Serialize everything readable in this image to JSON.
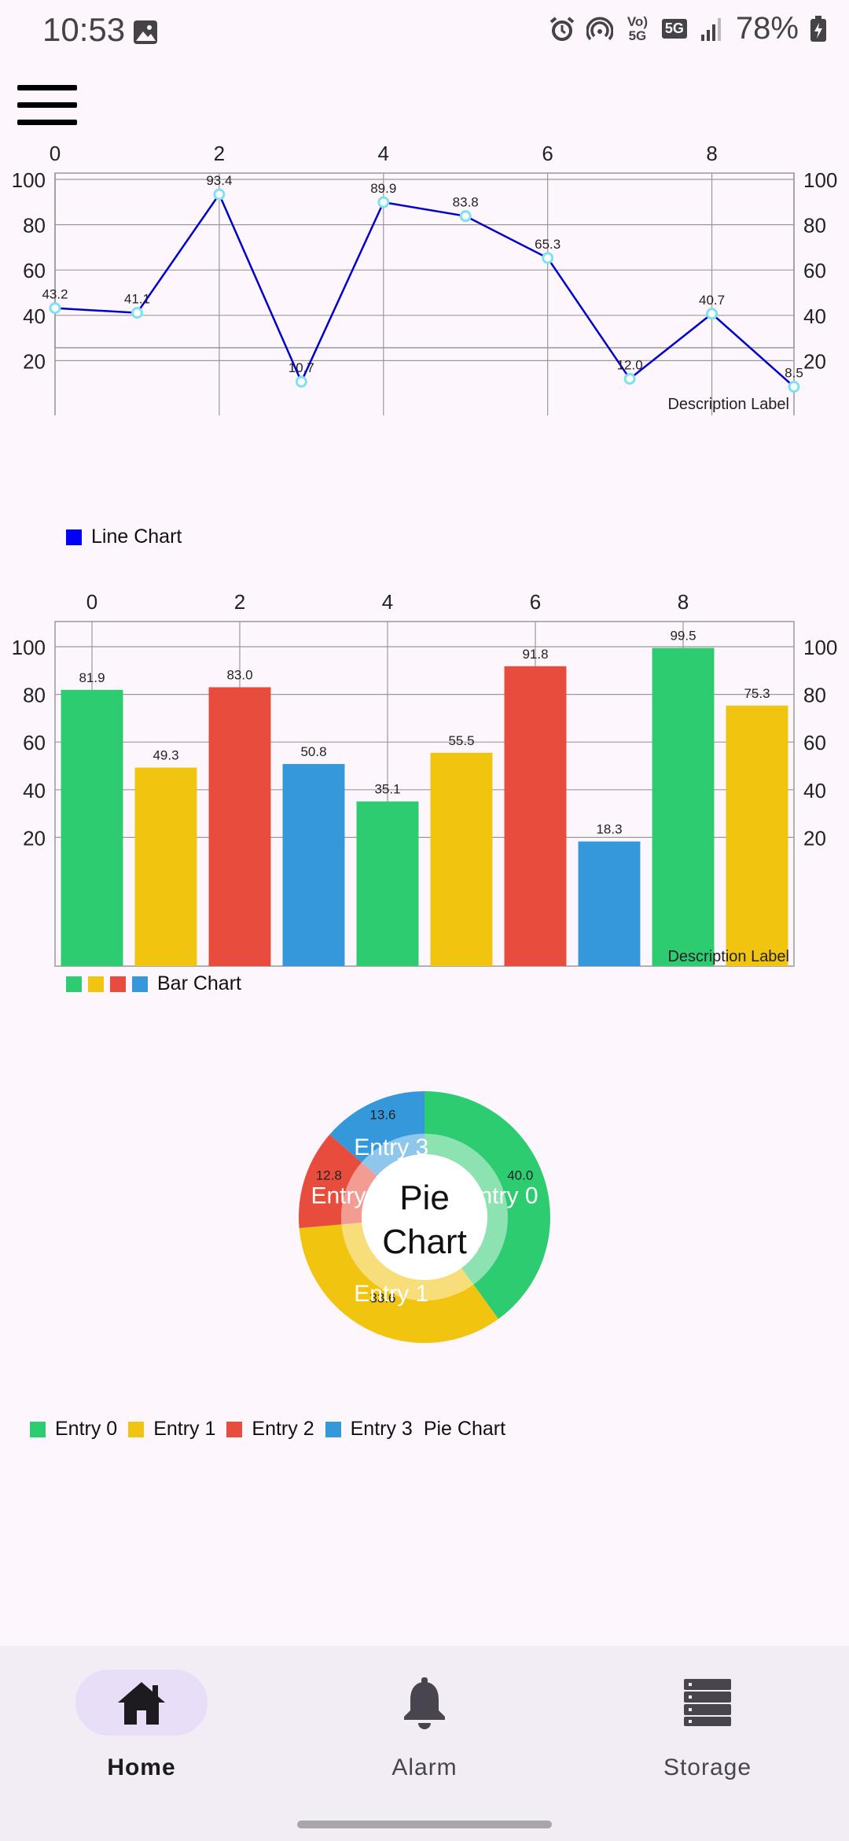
{
  "status_bar": {
    "time": "10:53",
    "battery": "78%",
    "network": "5G",
    "volte": "Vo) 5G"
  },
  "line_chart": {
    "chart_data": {
      "type": "line",
      "x": [
        0,
        1,
        2,
        3,
        4,
        5,
        6,
        7,
        8,
        9
      ],
      "values": [
        43.2,
        41.1,
        93.4,
        10.7,
        89.9,
        83.8,
        65.3,
        12.0,
        40.7,
        8.5
      ],
      "labels": [
        "43.2",
        "41.1",
        "93.4",
        "10.7",
        "89.9",
        "83.8",
        "65.3",
        "12.0",
        "40.7",
        "8.5"
      ],
      "xticks": [
        "0",
        "2",
        "4",
        "6",
        "8"
      ],
      "yticks": [
        "100",
        "80",
        "60",
        "40",
        "20"
      ],
      "ylim": [
        0,
        100
      ],
      "xlim": [
        0,
        9
      ],
      "description": "Description Label",
      "legend": "Line Chart",
      "color": "#0000cc"
    }
  },
  "bar_chart": {
    "chart_data": {
      "type": "bar",
      "x": [
        0,
        1,
        2,
        3,
        4,
        5,
        6,
        7,
        8,
        9
      ],
      "values": [
        81.9,
        49.3,
        83.0,
        50.8,
        35.1,
        55.5,
        91.8,
        18.3,
        99.5,
        75.3
      ],
      "labels": [
        "81.9",
        "49.3",
        "83.0",
        "50.8",
        "35.1",
        "55.5",
        "91.8",
        "18.3",
        "99.5",
        "75.3"
      ],
      "colors": [
        "#2ecc71",
        "#f1c40f",
        "#e74c3c",
        "#3498db",
        "#2ecc71",
        "#f1c40f",
        "#e74c3c",
        "#3498db",
        "#2ecc71",
        "#f1c40f"
      ],
      "xticks": [
        "0",
        "2",
        "4",
        "6",
        "8"
      ],
      "yticks": [
        "100",
        "80",
        "60",
        "40",
        "20"
      ],
      "ylim": [
        10,
        100
      ],
      "description": "Description Label",
      "legend": "Bar Chart",
      "legend_colors": [
        "#2ecc71",
        "#f1c40f",
        "#e74c3c",
        "#3498db"
      ]
    }
  },
  "pie_chart": {
    "chart_data": {
      "type": "pie",
      "center_text": [
        "Pie",
        "Chart"
      ],
      "slices": [
        {
          "name": "Entry 0",
          "value": 40.0,
          "label": "40.0",
          "color": "#2ecc71"
        },
        {
          "name": "Entry 1",
          "value": 33.6,
          "label": "33.6",
          "color": "#f1c40f"
        },
        {
          "name": "Entry 2",
          "value": 12.8,
          "label": "12.8",
          "color": "#e74c3c"
        },
        {
          "name": "Entry 3",
          "value": 13.6,
          "label": "13.6",
          "color": "#3498db"
        }
      ],
      "legend_title": "Pie Chart"
    }
  },
  "nav": {
    "items": [
      {
        "label": "Home",
        "icon": "home-icon",
        "active": true
      },
      {
        "label": "Alarm",
        "icon": "bell-icon",
        "active": false
      },
      {
        "label": "Storage",
        "icon": "storage-icon",
        "active": false
      }
    ]
  }
}
